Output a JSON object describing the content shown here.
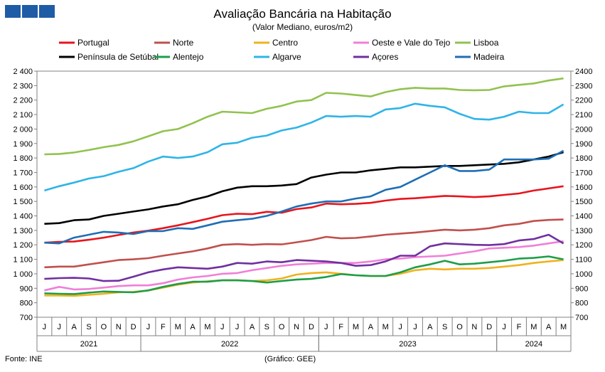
{
  "chart_data": {
    "type": "line",
    "title": "Avaliação Bancária na Habitação",
    "subtitle": "(Valor Mediano, euros/m2)",
    "source": "Fonte: INE",
    "credit": "(Gráfico: GEE)",
    "ylim": [
      700,
      2400
    ],
    "y_ticks_left": [
      "700",
      "800",
      "900",
      "1 000",
      "1 100",
      "1 200",
      "1 300",
      "1 400",
      "1 500",
      "1 600",
      "1 700",
      "1 800",
      "1 900",
      "2 000",
      "2 100",
      "2 200",
      "2 300",
      "2 400"
    ],
    "y_ticks_right": [
      "700",
      "800",
      "900",
      "1000",
      "1100",
      "1200",
      "1300",
      "1400",
      "1500",
      "1600",
      "1700",
      "1800",
      "1900",
      "2000",
      "2100",
      "2200",
      "2300",
      "2400"
    ],
    "x_months": [
      "J",
      "J",
      "A",
      "S",
      "O",
      "N",
      "D",
      "J",
      "F",
      "M",
      "A",
      "M",
      "J",
      "J",
      "A",
      "S",
      "O",
      "N",
      "D",
      "J",
      "F",
      "M",
      "A",
      "M",
      "J",
      "J",
      "A",
      "S",
      "O",
      "N",
      "D",
      "J",
      "F",
      "M",
      "A",
      "M"
    ],
    "year_groups": [
      {
        "label": "2021",
        "start": 0,
        "count": 7
      },
      {
        "label": "2022",
        "start": 7,
        "count": 12
      },
      {
        "label": "2023",
        "start": 19,
        "count": 12
      },
      {
        "label": "2024",
        "start": 31,
        "count": 5
      }
    ],
    "series": [
      {
        "name": "Portugal",
        "color": "#e8141c",
        "values": [
          1215,
          1221,
          1223,
          1235,
          1250,
          1268,
          1285,
          1298,
          1315,
          1335,
          1357,
          1380,
          1405,
          1415,
          1412,
          1428,
          1422,
          1447,
          1458,
          1485,
          1480,
          1483,
          1490,
          1506,
          1517,
          1522,
          1530,
          1538,
          1535,
          1530,
          1535,
          1545,
          1555,
          1575,
          1590,
          1605
        ]
      },
      {
        "name": "Norte",
        "color": "#c0504d",
        "values": [
          1045,
          1050,
          1050,
          1065,
          1080,
          1095,
          1100,
          1108,
          1125,
          1140,
          1155,
          1175,
          1200,
          1205,
          1200,
          1205,
          1203,
          1218,
          1233,
          1255,
          1245,
          1248,
          1258,
          1270,
          1278,
          1285,
          1295,
          1305,
          1300,
          1305,
          1315,
          1335,
          1345,
          1365,
          1372,
          1375
        ]
      },
      {
        "name": "Centro",
        "color": "#f0b21e",
        "values": [
          850,
          850,
          848,
          855,
          862,
          872,
          875,
          885,
          905,
          925,
          940,
          948,
          955,
          955,
          950,
          955,
          968,
          995,
          1005,
          1010,
          1000,
          990,
          985,
          985,
          1000,
          1025,
          1035,
          1030,
          1035,
          1035,
          1040,
          1050,
          1060,
          1075,
          1085,
          1095
        ]
      },
      {
        "name": "Oeste e Vale do Tejo",
        "color": "#f07fd8",
        "values": [
          885,
          910,
          892,
          895,
          905,
          915,
          920,
          920,
          935,
          960,
          975,
          985,
          1000,
          1005,
          1025,
          1040,
          1055,
          1065,
          1070,
          1075,
          1075,
          1075,
          1085,
          1100,
          1105,
          1115,
          1120,
          1125,
          1140,
          1155,
          1175,
          1180,
          1185,
          1195,
          1210,
          1225
        ]
      },
      {
        "name": "Lisboa",
        "color": "#92c24f",
        "values": [
          1825,
          1828,
          1838,
          1855,
          1875,
          1890,
          1915,
          1950,
          1985,
          2000,
          2040,
          2085,
          2120,
          2115,
          2110,
          2140,
          2160,
          2190,
          2200,
          2250,
          2245,
          2235,
          2225,
          2255,
          2275,
          2285,
          2280,
          2280,
          2270,
          2268,
          2270,
          2295,
          2305,
          2315,
          2335,
          2350
        ]
      },
      {
        "name": "Península de Setúbal",
        "color": "#000000",
        "values": [
          1345,
          1350,
          1370,
          1375,
          1400,
          1415,
          1430,
          1445,
          1465,
          1480,
          1510,
          1535,
          1570,
          1595,
          1605,
          1605,
          1610,
          1620,
          1665,
          1685,
          1700,
          1700,
          1715,
          1725,
          1735,
          1735,
          1740,
          1745,
          1745,
          1750,
          1755,
          1760,
          1770,
          1790,
          1810,
          1840
        ]
      },
      {
        "name": "Alentejo",
        "color": "#1e9e48",
        "values": [
          865,
          862,
          860,
          870,
          878,
          875,
          872,
          885,
          910,
          930,
          945,
          945,
          955,
          955,
          950,
          940,
          950,
          960,
          965,
          978,
          998,
          990,
          985,
          985,
          1010,
          1045,
          1065,
          1090,
          1065,
          1070,
          1080,
          1090,
          1105,
          1110,
          1120,
          1100
        ]
      },
      {
        "name": "Algarve",
        "color": "#2fb4e8",
        "values": [
          1575,
          1605,
          1630,
          1658,
          1675,
          1705,
          1730,
          1775,
          1810,
          1800,
          1810,
          1840,
          1895,
          1905,
          1940,
          1955,
          1990,
          2010,
          2045,
          2090,
          2085,
          2090,
          2085,
          2135,
          2145,
          2175,
          2160,
          2150,
          2105,
          2070,
          2065,
          2085,
          2120,
          2110,
          2110,
          2170
        ]
      },
      {
        "name": "Açores",
        "color": "#7030a0",
        "values": [
          965,
          970,
          972,
          968,
          950,
          952,
          980,
          1010,
          1030,
          1045,
          1040,
          1035,
          1050,
          1075,
          1070,
          1085,
          1080,
          1095,
          1090,
          1085,
          1075,
          1055,
          1060,
          1085,
          1125,
          1125,
          1190,
          1210,
          1205,
          1200,
          1198,
          1205,
          1230,
          1240,
          1270,
          1210
        ]
      },
      {
        "name": "Madeira",
        "color": "#1f6eb5",
        "values": [
          1215,
          1210,
          1250,
          1270,
          1290,
          1285,
          1275,
          1295,
          1295,
          1315,
          1310,
          1335,
          1360,
          1370,
          1380,
          1400,
          1430,
          1465,
          1485,
          1500,
          1500,
          1520,
          1535,
          1580,
          1600,
          1650,
          1700,
          1750,
          1710,
          1710,
          1720,
          1790,
          1790,
          1790,
          1795,
          1850
        ]
      }
    ],
    "legend_order": [
      "Portugal",
      "Norte",
      "Centro",
      "Oeste e Vale do Tejo",
      "Lisboa",
      "Península de Setúbal",
      "Alentejo",
      "Algarve",
      "Açores",
      "Madeira"
    ]
  }
}
